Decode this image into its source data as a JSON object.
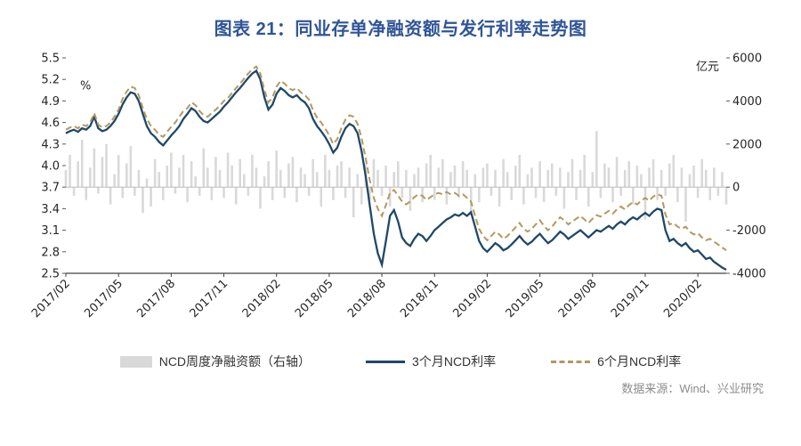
{
  "title": "图表 21：同业存单净融资额与发行利率走势图",
  "source": "数据来源：Wind、兴业研究",
  "colors": {
    "title": "#2f5597",
    "bar": "#d9d9d9",
    "line_3m": "#1f4868",
    "line_6m": "#b5985f"
  },
  "legend": [
    {
      "label": "NCD周度净融资额（右轴）",
      "type": "bar"
    },
    {
      "label": "3个月NCD利率",
      "type": "line"
    },
    {
      "label": "6个月NCD利率",
      "type": "dashed"
    }
  ],
  "chart_data": {
    "type": "combo",
    "left_axis": {
      "label": "%",
      "min": 2.5,
      "max": 5.5,
      "ticks": [
        5.5,
        5.2,
        4.9,
        4.6,
        4.3,
        4.0,
        3.7,
        3.4,
        3.1,
        2.8,
        2.5
      ]
    },
    "right_axis": {
      "label": "亿元",
      "min": -4000,
      "max": 6000,
      "ticks": [
        6000,
        4000,
        2000,
        0,
        -2000,
        -4000
      ]
    },
    "x_tick_labels": [
      "2017/02",
      "2017/05",
      "2017/08",
      "2017/11",
      "2018/02",
      "2018/05",
      "2018/08",
      "2018/11",
      "2019/02",
      "2019/05",
      "2019/08",
      "2019/11",
      "2020/02"
    ],
    "x_tick_indices": [
      0,
      13,
      26,
      39,
      52,
      65,
      78,
      91,
      104,
      117,
      130,
      143,
      156
    ],
    "series": [
      {
        "name": "NCD周度净融资额（右轴）",
        "type": "bar",
        "axis": "right",
        "color": "#d9d9d9",
        "values": [
          800,
          1500,
          -400,
          1200,
          2200,
          -600,
          900,
          1800,
          -300,
          1400,
          2000,
          -800,
          600,
          1500,
          -500,
          1100,
          1900,
          -400,
          800,
          -1200,
          400,
          -900,
          1300,
          700,
          -600,
          1000,
          1600,
          -300,
          900,
          1500,
          -700,
          1200,
          500,
          -400,
          1800,
          900,
          -600,
          1400,
          800,
          -500,
          1600,
          1000,
          -800,
          1300,
          600,
          -400,
          1500,
          900,
          -1000,
          500,
          1200,
          -600,
          1700,
          800,
          -500,
          1100,
          1400,
          -700,
          900,
          600,
          -400,
          1300,
          700,
          -900,
          1500,
          800,
          -600,
          1000,
          1200,
          -500,
          900,
          -1400,
          600,
          -800,
          1100,
          -600,
          1300,
          800,
          -400,
          1000,
          -900,
          700,
          1200,
          -500,
          800,
          -1100,
          600,
          900,
          -700,
          1100,
          1500,
          -600,
          900,
          1300,
          -800,
          700,
          1000,
          -500,
          1200,
          800,
          -1300,
          600,
          -700,
          900,
          1100,
          -400,
          800,
          -900,
          1300,
          700,
          -600,
          1000,
          1500,
          -800,
          600,
          900,
          -500,
          1200,
          -700,
          800,
          1100,
          -400,
          900,
          -1000,
          700,
          1300,
          -600,
          800,
          1500,
          -900,
          700,
          2600,
          -500,
          1100,
          900,
          -700,
          1400,
          -400,
          800,
          1200,
          -800,
          1000,
          600,
          -1500,
          900,
          1300,
          -600,
          800,
          -400,
          1100,
          1500,
          -700,
          900,
          -1600,
          600,
          1000,
          -500,
          1300,
          800,
          -600,
          900,
          -400,
          700,
          -800
        ]
      },
      {
        "name": "3个月NCD利率",
        "type": "line",
        "axis": "left",
        "color": "#1f4868",
        "dash": false,
        "values": [
          4.45,
          4.48,
          4.5,
          4.47,
          4.52,
          4.5,
          4.55,
          4.68,
          4.52,
          4.48,
          4.5,
          4.55,
          4.62,
          4.72,
          4.85,
          4.95,
          5.02,
          5.0,
          4.9,
          4.72,
          4.55,
          4.45,
          4.4,
          4.33,
          4.28,
          4.35,
          4.42,
          4.48,
          4.55,
          4.65,
          4.72,
          4.8,
          4.76,
          4.68,
          4.62,
          4.6,
          4.65,
          4.7,
          4.75,
          4.82,
          4.88,
          4.95,
          5.02,
          5.08,
          5.15,
          5.22,
          5.28,
          5.32,
          5.2,
          4.95,
          4.78,
          4.85,
          5.0,
          5.08,
          5.04,
          4.98,
          4.95,
          4.98,
          4.92,
          4.88,
          4.8,
          4.65,
          4.55,
          4.48,
          4.4,
          4.3,
          4.18,
          4.25,
          4.4,
          4.52,
          4.58,
          4.55,
          4.45,
          4.2,
          3.85,
          3.45,
          3.05,
          2.78,
          2.62,
          2.95,
          3.3,
          3.38,
          3.22,
          3.0,
          2.92,
          2.88,
          2.98,
          3.05,
          3.02,
          2.95,
          3.02,
          3.1,
          3.15,
          3.2,
          3.25,
          3.28,
          3.32,
          3.3,
          3.34,
          3.3,
          3.35,
          3.15,
          2.95,
          2.85,
          2.8,
          2.86,
          2.92,
          2.88,
          2.82,
          2.85,
          2.9,
          2.96,
          3.02,
          2.95,
          2.9,
          2.94,
          3.0,
          3.05,
          2.98,
          2.92,
          2.96,
          3.02,
          3.08,
          3.04,
          2.98,
          3.02,
          3.06,
          3.1,
          3.05,
          3.0,
          3.05,
          3.1,
          3.08,
          3.12,
          3.16,
          3.12,
          3.18,
          3.22,
          3.18,
          3.24,
          3.28,
          3.25,
          3.3,
          3.34,
          3.3,
          3.36,
          3.4,
          3.38,
          3.1,
          2.95,
          2.98,
          2.92,
          2.88,
          2.92,
          2.85,
          2.8,
          2.82,
          2.76,
          2.7,
          2.72,
          2.66,
          2.62,
          2.58,
          2.55
        ]
      },
      {
        "name": "6个月NCD利率",
        "type": "line",
        "axis": "left",
        "color": "#b5985f",
        "dash": true,
        "values": [
          4.5,
          4.53,
          4.55,
          4.52,
          4.57,
          4.55,
          4.6,
          4.73,
          4.57,
          4.53,
          4.55,
          4.6,
          4.68,
          4.78,
          4.93,
          5.03,
          5.1,
          5.08,
          4.98,
          4.8,
          4.65,
          4.55,
          4.5,
          4.43,
          4.4,
          4.47,
          4.54,
          4.6,
          4.68,
          4.76,
          4.8,
          4.88,
          4.84,
          4.76,
          4.7,
          4.68,
          4.73,
          4.78,
          4.83,
          4.9,
          4.94,
          5.01,
          5.08,
          5.14,
          5.21,
          5.28,
          5.34,
          5.38,
          5.28,
          5.05,
          4.88,
          4.95,
          5.1,
          5.18,
          5.14,
          5.08,
          5.05,
          5.08,
          5.02,
          4.98,
          4.92,
          4.77,
          4.67,
          4.6,
          4.52,
          4.42,
          4.3,
          4.37,
          4.52,
          4.64,
          4.7,
          4.68,
          4.58,
          4.38,
          4.1,
          3.8,
          3.55,
          3.4,
          3.3,
          3.45,
          3.62,
          3.66,
          3.58,
          3.5,
          3.46,
          3.5,
          3.56,
          3.6,
          3.58,
          3.52,
          3.56,
          3.6,
          3.62,
          3.6,
          3.63,
          3.6,
          3.62,
          3.58,
          3.6,
          3.55,
          3.5,
          3.3,
          3.12,
          3.02,
          2.96,
          3.02,
          3.08,
          3.04,
          2.98,
          3.02,
          3.08,
          3.14,
          3.2,
          3.12,
          3.08,
          3.12,
          3.18,
          3.24,
          3.16,
          3.1,
          3.15,
          3.22,
          3.28,
          3.24,
          3.18,
          3.22,
          3.26,
          3.3,
          3.25,
          3.2,
          3.26,
          3.31,
          3.29,
          3.33,
          3.37,
          3.33,
          3.39,
          3.43,
          3.39,
          3.45,
          3.49,
          3.46,
          3.51,
          3.55,
          3.51,
          3.57,
          3.6,
          3.58,
          3.32,
          3.18,
          3.2,
          3.15,
          3.12,
          3.15,
          3.08,
          3.04,
          3.06,
          3.0,
          2.96,
          2.98,
          2.94,
          2.9,
          2.86,
          2.82
        ]
      }
    ]
  }
}
